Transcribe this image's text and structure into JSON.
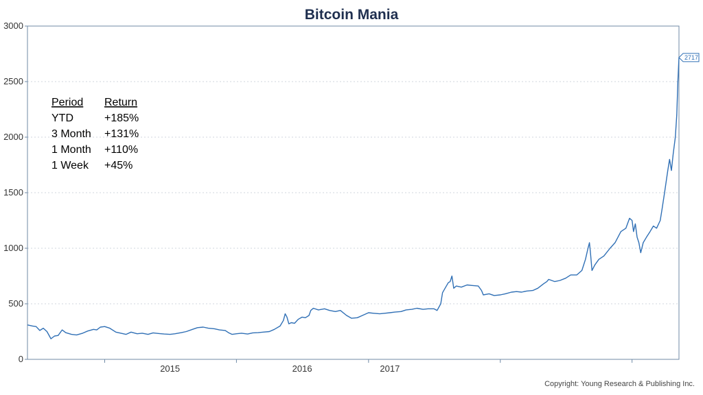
{
  "chart_data": {
    "type": "line",
    "title": "Bitcoin Mania",
    "xlabel": "",
    "ylabel": "",
    "ylim": [
      0,
      3000
    ],
    "yticks": [
      "0",
      "500",
      "1000",
      "1500",
      "2000",
      "2500",
      "3000"
    ],
    "xticks": [
      {
        "label": "2015",
        "x": "2015-07-01"
      },
      {
        "label": "2016",
        "x": "2016-07-01"
      },
      {
        "label": "2017",
        "x": "2017-03-01"
      }
    ],
    "grid": "horizontal dotted",
    "last_value_label": "2717",
    "series": [
      {
        "color": "#2f6fb5",
        "points": [
          [
            "2014-06-01",
            310
          ],
          [
            "2014-06-15",
            300
          ],
          [
            "2014-06-25",
            295
          ],
          [
            "2014-07-05",
            260
          ],
          [
            "2014-07-15",
            280
          ],
          [
            "2014-07-25",
            250
          ],
          [
            "2014-08-05",
            185
          ],
          [
            "2014-08-15",
            210
          ],
          [
            "2014-08-25",
            215
          ],
          [
            "2014-09-05",
            265
          ],
          [
            "2014-09-15",
            240
          ],
          [
            "2014-10-01",
            225
          ],
          [
            "2014-10-15",
            220
          ],
          [
            "2014-11-01",
            235
          ],
          [
            "2014-11-15",
            255
          ],
          [
            "2014-12-01",
            270
          ],
          [
            "2014-12-10",
            265
          ],
          [
            "2014-12-20",
            290
          ],
          [
            "2015-01-01",
            295
          ],
          [
            "2015-01-15",
            280
          ],
          [
            "2015-02-01",
            245
          ],
          [
            "2015-02-15",
            235
          ],
          [
            "2015-03-01",
            225
          ],
          [
            "2015-03-15",
            245
          ],
          [
            "2015-04-01",
            230
          ],
          [
            "2015-04-15",
            235
          ],
          [
            "2015-05-01",
            225
          ],
          [
            "2015-05-15",
            238
          ],
          [
            "2015-06-01",
            232
          ],
          [
            "2015-06-15",
            228
          ],
          [
            "2015-07-01",
            225
          ],
          [
            "2015-07-15",
            230
          ],
          [
            "2015-08-01",
            240
          ],
          [
            "2015-08-15",
            250
          ],
          [
            "2015-09-01",
            270
          ],
          [
            "2015-09-15",
            285
          ],
          [
            "2015-10-01",
            290
          ],
          [
            "2015-10-15",
            280
          ],
          [
            "2015-11-01",
            275
          ],
          [
            "2015-11-15",
            265
          ],
          [
            "2015-12-01",
            260
          ],
          [
            "2015-12-10",
            240
          ],
          [
            "2015-12-20",
            225
          ],
          [
            "2016-01-01",
            230
          ],
          [
            "2016-01-15",
            235
          ],
          [
            "2016-02-01",
            228
          ],
          [
            "2016-02-15",
            238
          ],
          [
            "2016-03-01",
            240
          ],
          [
            "2016-03-15",
            245
          ],
          [
            "2016-04-01",
            250
          ],
          [
            "2016-04-15",
            270
          ],
          [
            "2016-05-01",
            300
          ],
          [
            "2016-05-10",
            350
          ],
          [
            "2016-05-15",
            410
          ],
          [
            "2016-05-20",
            380
          ],
          [
            "2016-05-25",
            320
          ],
          [
            "2016-06-01",
            330
          ],
          [
            "2016-06-10",
            325
          ],
          [
            "2016-06-20",
            360
          ],
          [
            "2016-07-01",
            380
          ],
          [
            "2016-07-10",
            375
          ],
          [
            "2016-07-20",
            395
          ],
          [
            "2016-07-25",
            440
          ],
          [
            "2016-08-01",
            460
          ],
          [
            "2016-08-15",
            445
          ],
          [
            "2016-09-01",
            455
          ],
          [
            "2016-09-15",
            440
          ],
          [
            "2016-10-01",
            430
          ],
          [
            "2016-10-15",
            440
          ],
          [
            "2016-11-01",
            395
          ],
          [
            "2016-11-15",
            370
          ],
          [
            "2016-12-01",
            375
          ],
          [
            "2016-12-15",
            395
          ],
          [
            "2017-01-01",
            420
          ],
          [
            "2017-01-15",
            415
          ],
          [
            "2017-02-01",
            410
          ],
          [
            "2017-02-15",
            415
          ],
          [
            "2017-03-01",
            420
          ],
          [
            "2017-03-15",
            425
          ],
          [
            "2017-04-01",
            430
          ],
          [
            "2017-04-15",
            445
          ],
          [
            "2017-05-01",
            450
          ],
          [
            "2017-05-15",
            460
          ],
          [
            "2017-06-01",
            450
          ],
          [
            "2017-06-15",
            455
          ],
          [
            "2017-07-01",
            455
          ],
          [
            "2017-07-10",
            440
          ],
          [
            "2017-07-20",
            500
          ],
          [
            "2017-07-25",
            600
          ],
          [
            "2017-08-01",
            640
          ],
          [
            "2017-08-10",
            690
          ],
          [
            "2017-08-15",
            700
          ],
          [
            "2017-08-20",
            750
          ],
          [
            "2017-08-25",
            640
          ],
          [
            "2017-09-01",
            660
          ],
          [
            "2017-09-15",
            650
          ],
          [
            "2017-10-01",
            670
          ],
          [
            "2017-10-15",
            665
          ],
          [
            "2017-11-01",
            660
          ],
          [
            "2017-11-10",
            620
          ],
          [
            "2017-11-15",
            580
          ],
          [
            "2017-12-01",
            590
          ],
          [
            "2017-12-15",
            575
          ],
          [
            "2018-01-01",
            580
          ],
          [
            "2018-01-15",
            590
          ],
          [
            "2018-02-01",
            605
          ],
          [
            "2018-02-15",
            610
          ],
          [
            "2018-03-01",
            605
          ],
          [
            "2018-03-15",
            615
          ],
          [
            "2018-04-01",
            620
          ],
          [
            "2018-04-15",
            640
          ],
          [
            "2018-05-01",
            680
          ],
          [
            "2018-05-10",
            700
          ],
          [
            "2018-05-15",
            720
          ],
          [
            "2018-06-01",
            700
          ],
          [
            "2018-06-15",
            710
          ],
          [
            "2018-07-01",
            730
          ],
          [
            "2018-07-15",
            760
          ],
          [
            "2018-08-01",
            760
          ],
          [
            "2018-08-15",
            800
          ],
          [
            "2018-08-25",
            900
          ],
          [
            "2018-09-01",
            1000
          ],
          [
            "2018-09-05",
            1050
          ],
          [
            "2018-09-08",
            950
          ],
          [
            "2018-09-12",
            800
          ],
          [
            "2018-09-20",
            850
          ],
          [
            "2018-10-01",
            900
          ],
          [
            "2018-10-15",
            930
          ],
          [
            "2018-11-01",
            1000
          ],
          [
            "2018-11-15",
            1050
          ],
          [
            "2018-12-01",
            1150
          ],
          [
            "2018-12-15",
            1180
          ],
          [
            "2018-12-25",
            1270
          ],
          [
            "2019-01-01",
            1250
          ],
          [
            "2019-01-05",
            1150
          ],
          [
            "2019-01-10",
            1220
          ],
          [
            "2019-01-15",
            1100
          ],
          [
            "2019-01-20",
            1050
          ],
          [
            "2019-01-25",
            960
          ],
          [
            "2019-02-01",
            1050
          ],
          [
            "2019-02-10",
            1100
          ],
          [
            "2019-02-20",
            1150
          ],
          [
            "2019-03-01",
            1200
          ],
          [
            "2019-03-10",
            1180
          ],
          [
            "2019-03-20",
            1250
          ],
          [
            "2019-03-25",
            1350
          ],
          [
            "2019-04-01",
            1500
          ],
          [
            "2019-04-10",
            1700
          ],
          [
            "2019-04-15",
            1800
          ],
          [
            "2019-04-20",
            1700
          ],
          [
            "2019-04-25",
            1850
          ],
          [
            "2019-05-01",
            2000
          ],
          [
            "2019-05-05",
            2200
          ],
          [
            "2019-05-08",
            2500
          ],
          [
            "2019-05-11",
            2717
          ]
        ]
      }
    ],
    "annotation_table": {
      "headers": [
        "Period",
        "Return"
      ],
      "rows": [
        [
          "YTD",
          "+185%"
        ],
        [
          "3 Month",
          "+131%"
        ],
        [
          "1 Month",
          "+110%"
        ],
        [
          "1 Week",
          "+45%"
        ]
      ]
    }
  },
  "footer": {
    "copyright": "Copyright: Young Research & Publishing Inc."
  }
}
